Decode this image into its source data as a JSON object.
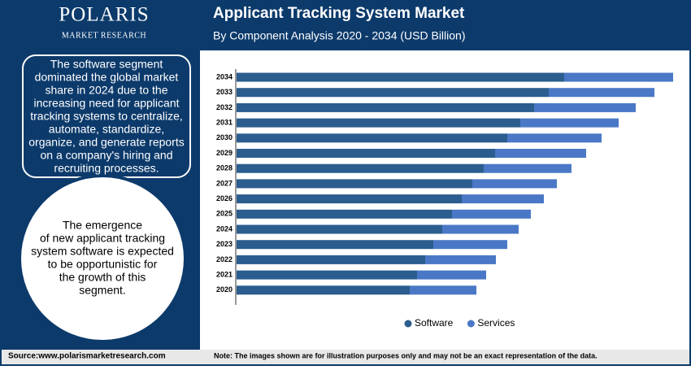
{
  "brand": {
    "name": "POLARIS",
    "tagline": "MARKET RESEARCH"
  },
  "insights": {
    "box_lines": [
      "The software segment",
      "dominated the global market",
      "share in 2024 due to the",
      "increasing need for applicant",
      "tracking systems to centralize,",
      "automate, standardize,",
      "organize, and generate reports",
      "on a company's hiring and",
      "recruiting processes."
    ],
    "circle_lines": [
      "The emergence",
      "of new applicant tracking",
      "system software is expected",
      "to be opportunistic for",
      "the growth of this",
      "segment."
    ]
  },
  "footer": {
    "source": "Source:www.polarismarketresearch.com",
    "note": "Note: The images shown are for illustration purposes only and may not be an exact representation of the data."
  },
  "chart_data": {
    "type": "stacked_barh",
    "title": "Applicant Tracking System Market",
    "subtitle": "By Component Analysis 2020 - 2034 (USD Billion)",
    "categories": [
      "2020",
      "2021",
      "2022",
      "2023",
      "2024",
      "2025",
      "2026",
      "2027",
      "2028",
      "2029",
      "2030",
      "2031",
      "2032",
      "2033",
      "2034"
    ],
    "series": [
      {
        "name": "Software",
        "color": "#2b5d8e",
        "values": [
          2.13,
          2.22,
          2.32,
          2.42,
          2.53,
          2.65,
          2.77,
          2.9,
          3.04,
          3.18,
          3.33,
          3.49,
          3.66,
          3.84,
          4.03
        ]
      },
      {
        "name": "Services",
        "color": "#4a78c6",
        "values": [
          0.82,
          0.85,
          0.87,
          0.91,
          0.94,
          0.97,
          1.01,
          1.04,
          1.08,
          1.12,
          1.16,
          1.21,
          1.25,
          1.3,
          1.34
        ]
      }
    ],
    "legend": "bottom"
  }
}
